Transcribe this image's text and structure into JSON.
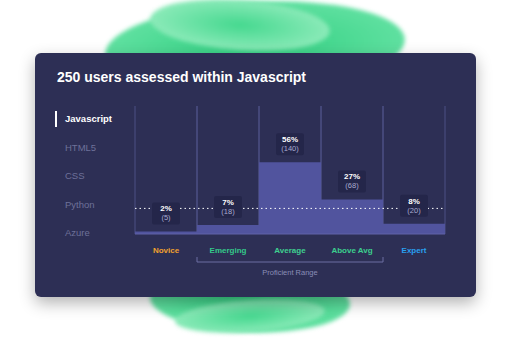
{
  "chart_data": {
    "type": "bar",
    "title": "250 users assessed within Javascript",
    "categories": [
      "Novice",
      "Emerging",
      "Average",
      "Above Avg",
      "Expert"
    ],
    "values": [
      2,
      7,
      56,
      27,
      8
    ],
    "value_labels": [
      "2%",
      "7%",
      "56%",
      "27%",
      "8%"
    ],
    "count_labels": [
      "(5)",
      "(18)",
      "(140)",
      "(68)",
      "(20)"
    ],
    "color": "#51549e",
    "ylim": [
      0,
      100
    ],
    "tick_labels": "x",
    "data_labels": true,
    "reference_line": 20,
    "annotations": [
      {
        "text": "Proficient Range",
        "start": "Emerging",
        "end": "Above Avg"
      }
    ]
  },
  "sidebar": {
    "items": [
      "Javascript",
      "HTML5",
      "CSS",
      "Python",
      "Azure"
    ],
    "selected": "Javascript"
  }
}
